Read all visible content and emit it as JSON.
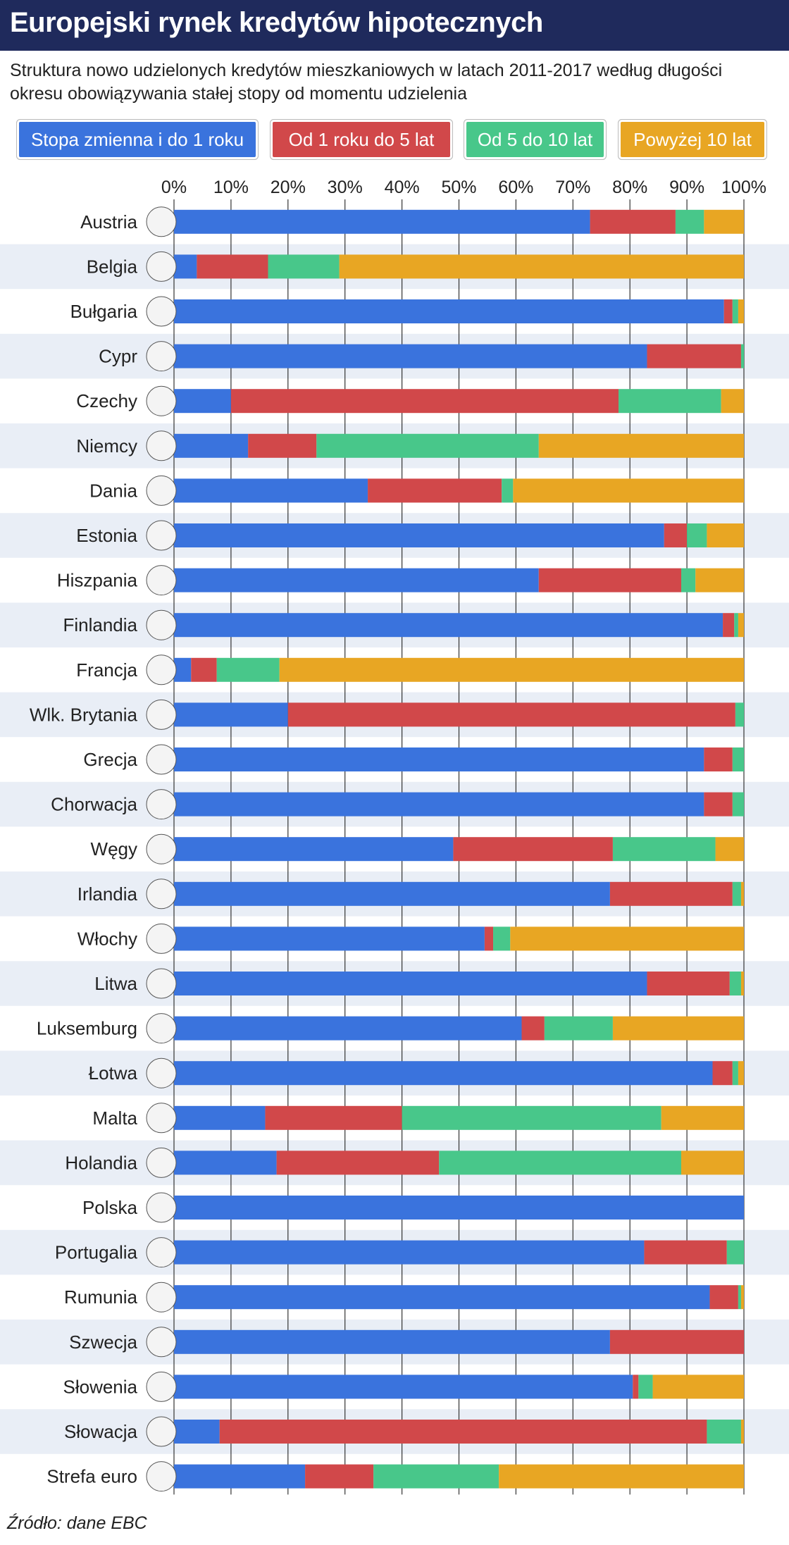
{
  "title": "Europejski rynek kredytów hipotecznych",
  "subtitle": "Struktura nowo udzielonych kredytów mieszkaniowych w latach 2011-2017 według długości okresu obowiązywania stałej stopy od momentu udzielenia",
  "source": "Źródło: dane EBC",
  "legend": [
    {
      "label": "Stopa zmienna i do 1 roku",
      "color": "#3a73dd"
    },
    {
      "label": "Od 1 roku do 5 lat",
      "color": "#d1484a"
    },
    {
      "label": "Od 5 do 10 lat",
      "color": "#48c78a"
    },
    {
      "label": "Powyżej 10 lat",
      "color": "#e8a623"
    }
  ],
  "chart_data": {
    "type": "bar",
    "orientation": "horizontal",
    "stacked": true,
    "xlim": [
      0,
      100
    ],
    "x_ticks": [
      "0%",
      "10%",
      "20%",
      "30%",
      "40%",
      "50%",
      "60%",
      "70%",
      "80%",
      "90%",
      "100%"
    ],
    "categories": [
      "Austria",
      "Belgia",
      "Bułgaria",
      "Cypr",
      "Czechy",
      "Niemcy",
      "Dania",
      "Estonia",
      "Hiszpania",
      "Finlandia",
      "Francja",
      "Wlk. Brytania",
      "Grecja",
      "Chorwacja",
      "Węgy",
      "Irlandia",
      "Włochy",
      "Litwa",
      "Luksemburg",
      "Łotwa",
      "Malta",
      "Holandia",
      "Polska",
      "Portugalia",
      "Rumunia",
      "Szwecja",
      "Słowenia",
      "Słowacja",
      "Strefa euro"
    ],
    "series": [
      {
        "name": "Stopa zmienna i do 1 roku",
        "color": "#3a73dd",
        "values": [
          73,
          4,
          96.5,
          83,
          10,
          13,
          34,
          86,
          64,
          96.3,
          3,
          20,
          93,
          93,
          49,
          76.5,
          54.5,
          83,
          61,
          94.5,
          16,
          18,
          100,
          82.5,
          94,
          76.5,
          80.5,
          8,
          23
        ]
      },
      {
        "name": "Od 1 roku do 5 lat",
        "color": "#d1484a",
        "values": [
          15,
          12.5,
          1.5,
          16.5,
          68,
          12,
          23.5,
          4,
          25,
          2,
          4.5,
          78.5,
          5,
          5,
          28,
          21.5,
          1.5,
          14.5,
          4,
          3.5,
          24,
          28.5,
          0,
          14.5,
          5,
          23.5,
          1,
          85.5,
          12
        ]
      },
      {
        "name": "Od 5 do 10 lat",
        "color": "#48c78a",
        "values": [
          5,
          12.5,
          1,
          0.5,
          18,
          39,
          2,
          3.5,
          2.5,
          0.7,
          11,
          1.5,
          2,
          2,
          18,
          1.5,
          3,
          2,
          12,
          1,
          45.5,
          42.5,
          0,
          3,
          0.5,
          0,
          2.5,
          6,
          22
        ]
      },
      {
        "name": "Powyżej 10 lat",
        "color": "#e8a623",
        "values": [
          7,
          71,
          1,
          0,
          4,
          36,
          40.5,
          6.5,
          8.5,
          1,
          81.5,
          0,
          0,
          0,
          5,
          0.5,
          41,
          0.5,
          23,
          1,
          14.5,
          11,
          0,
          0,
          0.5,
          0,
          16,
          0.5,
          43
        ]
      }
    ]
  }
}
